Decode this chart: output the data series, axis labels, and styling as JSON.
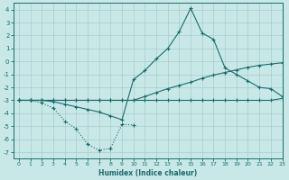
{
  "bg_color": "#c8e8e8",
  "grid_color": "#a8cccc",
  "line_color": "#1a6b6b",
  "xlabel": "Humidex (Indice chaleur)",
  "xlim": [
    -0.5,
    23
  ],
  "ylim": [
    -7.5,
    4.5
  ],
  "yticks": [
    -7,
    -6,
    -5,
    -4,
    -3,
    -2,
    -1,
    0,
    1,
    2,
    3,
    4
  ],
  "xticks": [
    0,
    1,
    2,
    3,
    4,
    5,
    6,
    7,
    8,
    9,
    10,
    11,
    12,
    13,
    14,
    15,
    16,
    17,
    18,
    19,
    20,
    21,
    22,
    23
  ],
  "curves": [
    {
      "x": [
        0,
        1,
        2,
        3,
        4,
        5,
        6,
        7,
        8,
        9,
        10
      ],
      "y": [
        -3.0,
        -3.0,
        -3.2,
        -3.6,
        -4.6,
        -5.2,
        -6.4,
        -6.85,
        -6.7,
        -4.85,
        -4.9
      ],
      "style": "dotted"
    },
    {
      "x": [
        0,
        1,
        2,
        3,
        4,
        5,
        6,
        7,
        8,
        9,
        10,
        11,
        12,
        13,
        14,
        15,
        16,
        17,
        18,
        19,
        20,
        21,
        22,
        23
      ],
      "y": [
        -3.0,
        -3.0,
        -3.0,
        -3.1,
        -3.3,
        -3.5,
        -3.7,
        -3.9,
        -4.2,
        -4.5,
        -1.4,
        -0.7,
        0.2,
        1.0,
        2.3,
        4.1,
        2.2,
        1.7,
        -0.5,
        -1.0,
        -1.5,
        -2.0,
        -2.1,
        -2.7
      ],
      "style": "solid"
    },
    {
      "x": [
        0,
        1,
        2,
        3,
        4,
        5,
        6,
        7,
        8,
        9,
        10,
        11,
        12,
        13,
        14,
        15,
        16,
        17,
        18,
        19,
        20,
        21,
        22,
        23
      ],
      "y": [
        -3.0,
        -3.0,
        -3.0,
        -3.0,
        -3.0,
        -3.0,
        -3.0,
        -3.0,
        -3.0,
        -3.0,
        -3.0,
        -2.7,
        -2.4,
        -2.1,
        -1.85,
        -1.6,
        -1.3,
        -1.05,
        -0.85,
        -0.65,
        -0.45,
        -0.3,
        -0.2,
        -0.1
      ],
      "style": "solid"
    },
    {
      "x": [
        0,
        1,
        2,
        3,
        4,
        5,
        6,
        7,
        8,
        9,
        10,
        11,
        12,
        13,
        14,
        15,
        16,
        17,
        18,
        19,
        20,
        21,
        22,
        23
      ],
      "y": [
        -3.0,
        -3.0,
        -3.0,
        -3.0,
        -3.0,
        -3.0,
        -3.0,
        -3.0,
        -3.0,
        -3.0,
        -3.0,
        -3.0,
        -3.0,
        -3.0,
        -3.0,
        -3.0,
        -3.0,
        -3.0,
        -3.0,
        -3.0,
        -3.0,
        -3.0,
        -3.0,
        -2.85
      ],
      "style": "solid"
    }
  ]
}
